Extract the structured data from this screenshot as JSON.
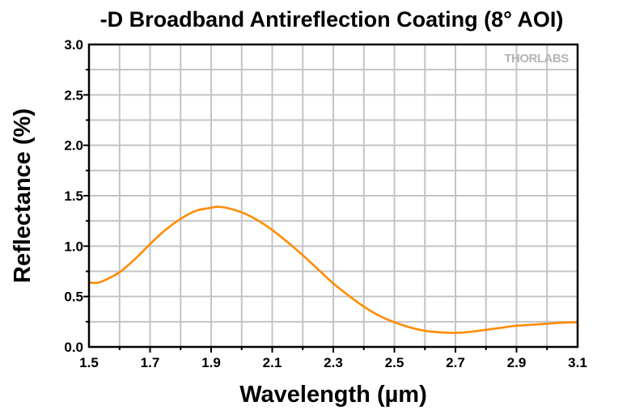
{
  "chart_data": {
    "type": "line",
    "title": "-D Broadband Antireflection Coating (8° AOI)",
    "xlabel": "Wavelength (µm)",
    "ylabel": "Reflectance (%)",
    "xlim": [
      1.5,
      3.1
    ],
    "ylim": [
      0.0,
      3.0
    ],
    "xticks": [
      "1.5",
      "1.7",
      "1.9",
      "2.1",
      "2.3",
      "2.5",
      "2.7",
      "2.9",
      "3.1"
    ],
    "yticks": [
      "0.0",
      "0.5",
      "1.0",
      "1.5",
      "2.0",
      "2.5",
      "3.0"
    ],
    "grid": true,
    "logo": "THORLABS",
    "series": [
      {
        "color": "#ff8c00",
        "x": [
          1.5,
          1.526,
          1.55,
          1.6,
          1.65,
          1.7,
          1.75,
          1.8,
          1.85,
          1.9,
          1.92,
          1.95,
          2.0,
          2.05,
          2.1,
          2.15,
          2.2,
          2.25,
          2.3,
          2.35,
          2.4,
          2.45,
          2.5,
          2.55,
          2.6,
          2.65,
          2.7,
          2.75,
          2.8,
          2.85,
          2.9,
          2.95,
          3.0,
          3.05,
          3.1
        ],
        "y": [
          0.64,
          0.635,
          0.66,
          0.74,
          0.87,
          1.02,
          1.16,
          1.27,
          1.35,
          1.38,
          1.39,
          1.38,
          1.335,
          1.26,
          1.16,
          1.04,
          0.91,
          0.77,
          0.63,
          0.51,
          0.4,
          0.31,
          0.245,
          0.195,
          0.16,
          0.145,
          0.14,
          0.15,
          0.17,
          0.19,
          0.21,
          0.22,
          0.23,
          0.24,
          0.245
        ]
      }
    ]
  }
}
